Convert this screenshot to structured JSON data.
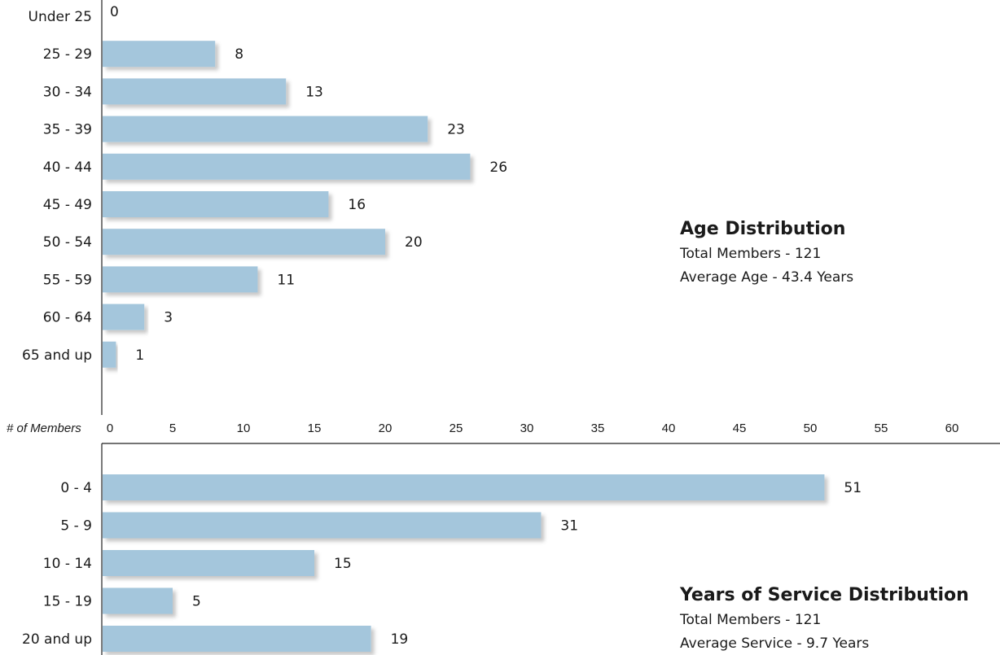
{
  "colors": {
    "bar": "#a4c6dc",
    "shadow": "#d9d9d9",
    "axis": "#222222"
  },
  "axis": {
    "title": "# of Members",
    "ticks": [
      0,
      5,
      10,
      15,
      20,
      25,
      30,
      35,
      40,
      45,
      50,
      55,
      60
    ],
    "range": [
      0,
      60
    ]
  },
  "chart_data": [
    {
      "type": "bar",
      "orientation": "horizontal",
      "title": "Age Distribution",
      "subtitle_lines": [
        "Total Members - 121",
        "Average Age - 43.4 Years"
      ],
      "categories": [
        "Under 25",
        "25 - 29",
        "30 - 34",
        "35 - 39",
        "40 - 44",
        "45 - 49",
        "50 - 54",
        "55 - 59",
        "60 - 64",
        "65 and up"
      ],
      "values": [
        0,
        8,
        13,
        23,
        26,
        16,
        20,
        11,
        3,
        1
      ],
      "xlabel": "# of Members",
      "xlim": [
        0,
        60
      ],
      "grid": false
    },
    {
      "type": "bar",
      "orientation": "horizontal",
      "title": "Years of Service Distribution",
      "subtitle_lines": [
        "Total Members - 121",
        "Average Service - 9.7 Years"
      ],
      "categories": [
        "0 - 4",
        "5 - 9",
        "10 - 14",
        "15 - 19",
        "20 and up"
      ],
      "values": [
        51,
        31,
        15,
        5,
        19
      ],
      "xlabel": "# of Members",
      "xlim": [
        0,
        60
      ],
      "grid": false
    }
  ]
}
